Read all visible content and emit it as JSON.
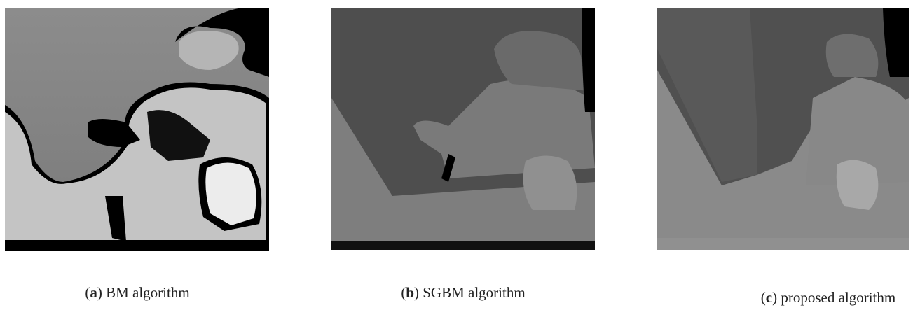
{
  "figure": {
    "panels": [
      {
        "open": "(",
        "label": "a",
        "caption": ") BM algorithm"
      },
      {
        "open": "(",
        "label": "b",
        "caption": ") SGBM algorithm"
      },
      {
        "open": "(",
        "label": "c",
        "caption": ") proposed algorithm"
      }
    ]
  }
}
